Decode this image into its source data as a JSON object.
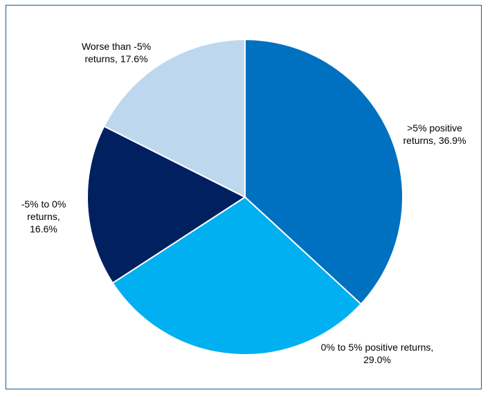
{
  "chart_data": {
    "type": "pie",
    "title": "",
    "slices": [
      {
        "label_lines": [
          ">5% positive",
          "returns, 36.9%"
        ],
        "value": 36.9,
        "color": "#0070c0"
      },
      {
        "label_lines": [
          "0% to 5% positive returns,",
          "29.0%"
        ],
        "value": 29.0,
        "color": "#00b0f0"
      },
      {
        "label_lines": [
          "-5% to 0%",
          "returns,",
          "16.6%"
        ],
        "value": 16.6,
        "color": "#002060"
      },
      {
        "label_lines": [
          "Worse than -5%",
          "returns, 17.6%"
        ],
        "value": 17.6,
        "color": "#bdd7ee"
      }
    ],
    "legend": "none"
  }
}
